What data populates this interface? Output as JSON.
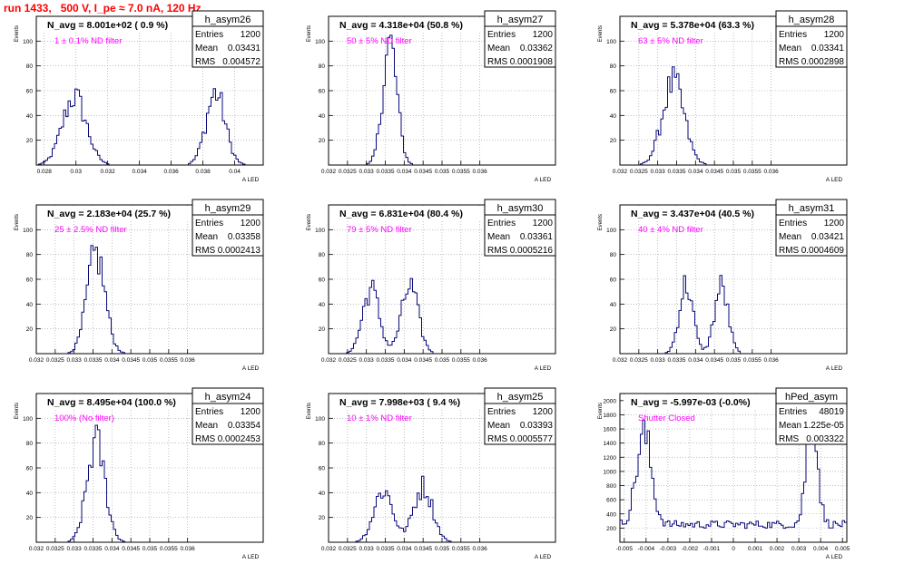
{
  "page": {
    "title": "run 1433,   500 V, I_pe ≈ 7.0 nA, 120 Hz"
  },
  "colors": {
    "histogram": "#0a0a7a",
    "note": "#ff00ff",
    "title": "#ff0000",
    "grid": "#999999"
  },
  "chart_data": [
    {
      "type": "histogram",
      "name": "h_asym26",
      "stats": {
        "Entries": "1200",
        "Mean": "0.03431",
        "RMS": "0.004572"
      },
      "label": "N_avg = 8.001e+02 ( 0.9 %)",
      "note": "1 ± 0.1% ND filter",
      "xlim": [
        0.0275,
        0.0418
      ],
      "ylim": [
        0,
        120
      ],
      "xticks": [
        {
          "v": 0.028,
          "t": "0.028"
        },
        {
          "v": 0.03,
          "t": "0.03"
        },
        {
          "v": 0.032,
          "t": "0.032"
        },
        {
          "v": 0.034,
          "t": "0.034"
        },
        {
          "v": 0.036,
          "t": "0.036"
        },
        {
          "v": 0.038,
          "t": "0.038"
        },
        {
          "v": 0.04,
          "t": "0.04"
        }
      ],
      "yticks": [
        20,
        40,
        60,
        80,
        100
      ],
      "ylabel": "Events",
      "xlabel": "A LED",
      "peaks": [
        [
          0.0299,
          55,
          0.00075
        ],
        [
          0.0388,
          58,
          0.0006
        ]
      ]
    },
    {
      "type": "histogram",
      "name": "h_asym27",
      "stats": {
        "Entries": "1200",
        "Mean": "0.03362",
        "RMS": "0.0001908"
      },
      "label": "N_avg = 4.318e+04 (50.8 %)",
      "note": "50 ± 5% ND filter",
      "xlim": [
        0.032,
        0.038
      ],
      "ylim": [
        0,
        120
      ],
      "xticks": [
        {
          "v": 0.032,
          "t": "0.032"
        },
        {
          "v": 0.0325,
          "t": "0.0325"
        },
        {
          "v": 0.033,
          "t": "0.033"
        },
        {
          "v": 0.0335,
          "t": "0.0335"
        },
        {
          "v": 0.034,
          "t": "0.034"
        },
        {
          "v": 0.0345,
          "t": "0.0345"
        },
        {
          "v": 0.035,
          "t": "0.035"
        },
        {
          "v": 0.0355,
          "t": "0.0355"
        },
        {
          "v": 0.036,
          "t": "0.036"
        }
      ],
      "yticks": [
        20,
        40,
        60,
        80,
        100
      ],
      "ylabel": "Events",
      "xlabel": "A LED",
      "peaks": [
        [
          0.03362,
          98,
          0.00019
        ]
      ]
    },
    {
      "type": "histogram",
      "name": "h_asym28",
      "stats": {
        "Entries": "1200",
        "Mean": "0.03341",
        "RMS": "0.0002898"
      },
      "label": "N_avg = 5.378e+04 (63.3 %)",
      "note": "63 ± 5% ND filter",
      "xlim": [
        0.032,
        0.038
      ],
      "ylim": [
        0,
        120
      ],
      "xticks": [
        {
          "v": 0.032,
          "t": "0.032"
        },
        {
          "v": 0.0325,
          "t": "0.0325"
        },
        {
          "v": 0.033,
          "t": "0.033"
        },
        {
          "v": 0.0335,
          "t": "0.0335"
        },
        {
          "v": 0.034,
          "t": "0.034"
        },
        {
          "v": 0.0345,
          "t": "0.0345"
        },
        {
          "v": 0.035,
          "t": "0.035"
        },
        {
          "v": 0.0355,
          "t": "0.0355"
        },
        {
          "v": 0.036,
          "t": "0.036"
        }
      ],
      "yticks": [
        20,
        40,
        60,
        80,
        100
      ],
      "ylabel": "Events",
      "xlabel": "A LED",
      "peaks": [
        [
          0.03341,
          66,
          0.00029
        ]
      ]
    },
    {
      "type": "histogram",
      "name": "h_asym29",
      "stats": {
        "Entries": "1200",
        "Mean": "0.03358",
        "RMS": "0.0002413"
      },
      "label": "N_avg = 2.183e+04 (25.7 %)",
      "note": "25 ± 2.5% ND filter",
      "xlim": [
        0.032,
        0.038
      ],
      "ylim": [
        0,
        120
      ],
      "xticks": [
        {
          "v": 0.032,
          "t": "0.032"
        },
        {
          "v": 0.0325,
          "t": "0.0325"
        },
        {
          "v": 0.033,
          "t": "0.033"
        },
        {
          "v": 0.0335,
          "t": "0.0335"
        },
        {
          "v": 0.034,
          "t": "0.034"
        },
        {
          "v": 0.0345,
          "t": "0.0345"
        },
        {
          "v": 0.035,
          "t": "0.035"
        },
        {
          "v": 0.0355,
          "t": "0.0355"
        },
        {
          "v": 0.036,
          "t": "0.036"
        }
      ],
      "yticks": [
        20,
        40,
        60,
        80,
        100
      ],
      "ylabel": "Events",
      "xlabel": "A LED",
      "peaks": [
        [
          0.03358,
          80,
          0.00024
        ]
      ]
    },
    {
      "type": "histogram",
      "name": "h_asym30",
      "stats": {
        "Entries": "1200",
        "Mean": "0.03361",
        "RMS": "0.0005216"
      },
      "label": "N_avg = 6.831e+04 (80.4 %)",
      "note": "79 ± 5% ND filter",
      "xlim": [
        0.032,
        0.038
      ],
      "ylim": [
        0,
        120
      ],
      "xticks": [
        {
          "v": 0.032,
          "t": "0.032"
        },
        {
          "v": 0.0325,
          "t": "0.0325"
        },
        {
          "v": 0.033,
          "t": "0.033"
        },
        {
          "v": 0.0335,
          "t": "0.0335"
        },
        {
          "v": 0.034,
          "t": "0.034"
        },
        {
          "v": 0.0345,
          "t": "0.0345"
        },
        {
          "v": 0.035,
          "t": "0.035"
        },
        {
          "v": 0.0355,
          "t": "0.0355"
        },
        {
          "v": 0.036,
          "t": "0.036"
        }
      ],
      "yticks": [
        20,
        40,
        60,
        80,
        100
      ],
      "ylabel": "Events",
      "xlabel": "A LED",
      "peaks": [
        [
          0.03312,
          52,
          0.00022
        ],
        [
          0.03415,
          54,
          0.00022
        ]
      ]
    },
    {
      "type": "histogram",
      "name": "h_asym31",
      "stats": {
        "Entries": "1200",
        "Mean": "0.03421",
        "RMS": "0.0004609"
      },
      "label": "N_avg = 3.437e+04 (40.5 %)",
      "note": "40 ± 4% ND filter",
      "xlim": [
        0.032,
        0.038
      ],
      "ylim": [
        0,
        120
      ],
      "xticks": [
        {
          "v": 0.032,
          "t": "0.032"
        },
        {
          "v": 0.0325,
          "t": "0.0325"
        },
        {
          "v": 0.033,
          "t": "0.033"
        },
        {
          "v": 0.0335,
          "t": "0.0335"
        },
        {
          "v": 0.034,
          "t": "0.034"
        },
        {
          "v": 0.0345,
          "t": "0.0345"
        },
        {
          "v": 0.035,
          "t": "0.035"
        },
        {
          "v": 0.0355,
          "t": "0.0355"
        },
        {
          "v": 0.036,
          "t": "0.036"
        }
      ],
      "yticks": [
        20,
        40,
        60,
        80,
        100
      ],
      "ylabel": "Events",
      "xlabel": "A LED",
      "peaks": [
        [
          0.03375,
          56,
          0.00018
        ],
        [
          0.03468,
          54,
          0.00018
        ]
      ]
    },
    {
      "type": "histogram",
      "name": "h_asym24",
      "stats": {
        "Entries": "1200",
        "Mean": "0.03354",
        "RMS": "0.0002453"
      },
      "label": "N_avg = 8.495e+04 (100.0 %)",
      "note": "100% (No filter)",
      "xlim": [
        0.032,
        0.038
      ],
      "ylim": [
        0,
        120
      ],
      "xticks": [
        {
          "v": 0.032,
          "t": "0.032"
        },
        {
          "v": 0.0325,
          "t": "0.0325"
        },
        {
          "v": 0.033,
          "t": "0.033"
        },
        {
          "v": 0.0335,
          "t": "0.0335"
        },
        {
          "v": 0.034,
          "t": "0.034"
        },
        {
          "v": 0.0345,
          "t": "0.0345"
        },
        {
          "v": 0.035,
          "t": "0.035"
        },
        {
          "v": 0.0355,
          "t": "0.0355"
        },
        {
          "v": 0.036,
          "t": "0.036"
        }
      ],
      "yticks": [
        20,
        40,
        60,
        80,
        100
      ],
      "ylabel": "Events",
      "xlabel": "A LED",
      "peaks": [
        [
          0.03358,
          80,
          0.00024
        ]
      ]
    },
    {
      "type": "histogram",
      "name": "h_asym25",
      "stats": {
        "Entries": "1200",
        "Mean": "0.03393",
        "RMS": "0.0005577"
      },
      "label": "N_avg = 7.998e+03 ( 9.4 %)",
      "note": "10 ± 1% ND filter",
      "xlim": [
        0.032,
        0.038
      ],
      "ylim": [
        0,
        120
      ],
      "xticks": [
        {
          "v": 0.032,
          "t": "0.032"
        },
        {
          "v": 0.0325,
          "t": "0.0325"
        },
        {
          "v": 0.033,
          "t": "0.033"
        },
        {
          "v": 0.0335,
          "t": "0.0335"
        },
        {
          "v": 0.034,
          "t": "0.034"
        },
        {
          "v": 0.0345,
          "t": "0.0345"
        },
        {
          "v": 0.035,
          "t": "0.035"
        },
        {
          "v": 0.0355,
          "t": "0.0355"
        },
        {
          "v": 0.036,
          "t": "0.036"
        }
      ],
      "yticks": [
        20,
        40,
        60,
        80,
        100
      ],
      "ylabel": "Events",
      "xlabel": "A LED",
      "peaks": [
        [
          0.03345,
          42,
          0.00025
        ],
        [
          0.0345,
          45,
          0.00025
        ]
      ]
    },
    {
      "type": "histogram",
      "name": "hPed_asym",
      "stats": {
        "Entries": "48019",
        "Mean": "1.225e-05",
        "RMS": "0.003322"
      },
      "label": "N_avg = -5.997e-03 (-0.0%)",
      "note": "Shutter Closed",
      "xlim": [
        -0.0052,
        0.0052
      ],
      "ylim": [
        0,
        2100
      ],
      "xticks": [
        {
          "v": -0.005,
          "t": "-0.005"
        },
        {
          "v": -0.004,
          "t": "-0.004"
        },
        {
          "v": -0.003,
          "t": "-0.003"
        },
        {
          "v": -0.002,
          "t": "-0.002"
        },
        {
          "v": -0.001,
          "t": "-0.001"
        },
        {
          "v": 0,
          "t": "0"
        },
        {
          "v": 0.001,
          "t": "0.001"
        },
        {
          "v": 0.002,
          "t": "0.002"
        },
        {
          "v": 0.003,
          "t": "0.003"
        },
        {
          "v": 0.004,
          "t": "0.004"
        },
        {
          "v": 0.005,
          "t": "0.005"
        }
      ],
      "yticks": [
        200,
        400,
        600,
        800,
        1000,
        1200,
        1400,
        1600,
        1800,
        2000
      ],
      "ylabel": "Events",
      "xlabel": "A LED",
      "peaks": [
        [
          -0.0041,
          1250,
          0.00035
        ],
        [
          0.0036,
          1600,
          0.00025
        ]
      ],
      "baseline": 250
    }
  ]
}
